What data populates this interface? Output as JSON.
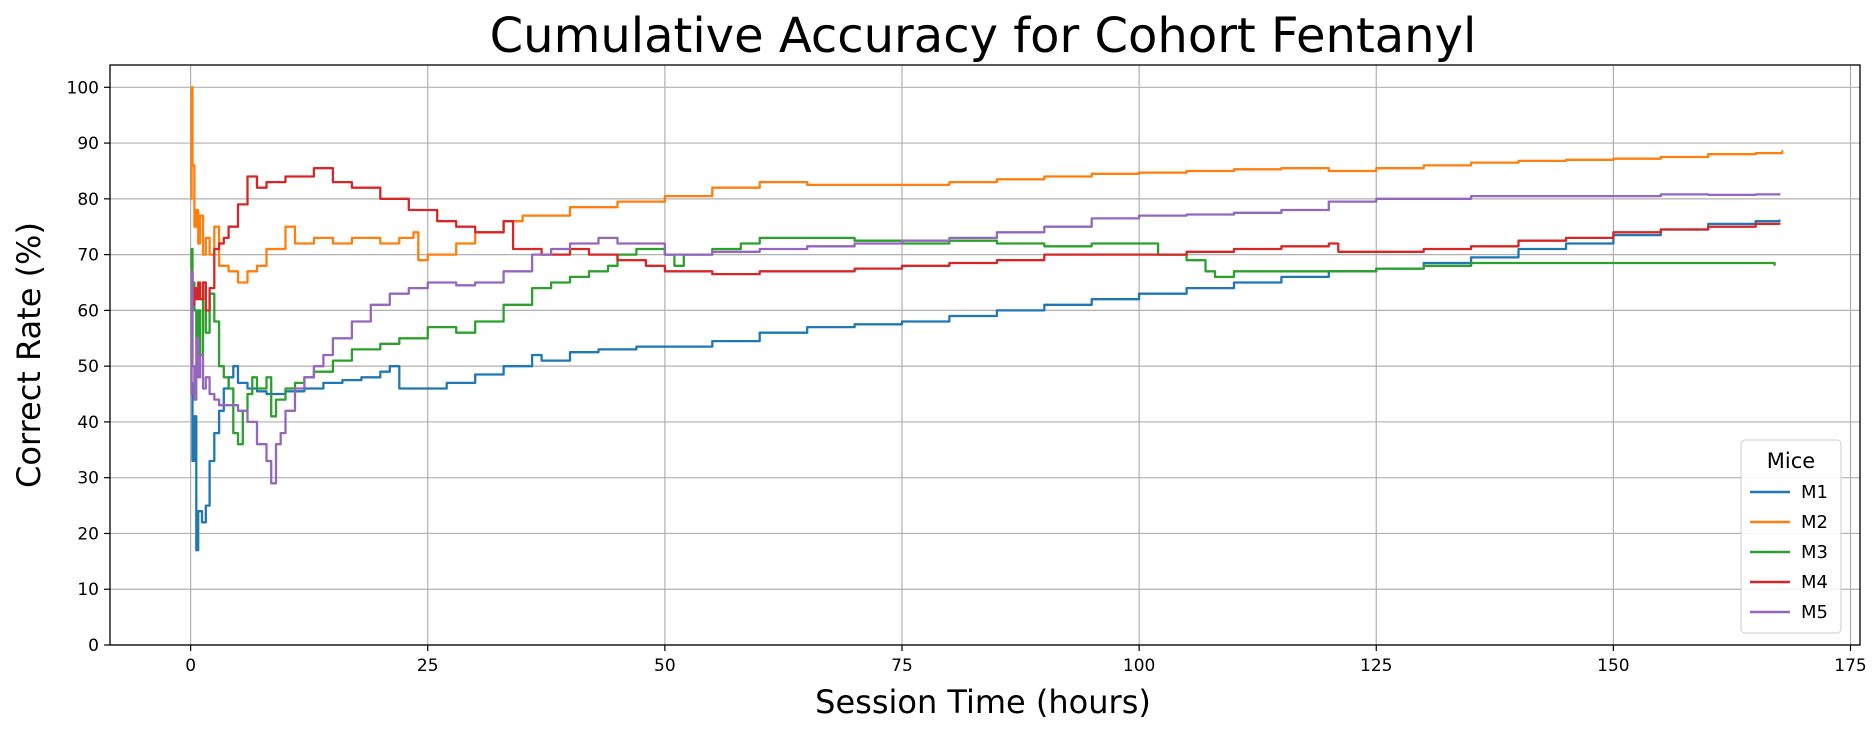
{
  "chart_data": {
    "type": "line",
    "title": "Cumulative Accuracy for Cohort Fentanyl",
    "xlabel": "Session Time (hours)",
    "ylabel": "Correct Rate (%)",
    "xlim": [
      -8.5,
      176
    ],
    "ylim": [
      0,
      104
    ],
    "xticks": [
      0,
      25,
      50,
      75,
      100,
      125,
      150,
      175
    ],
    "yticks": [
      0,
      10,
      20,
      30,
      40,
      50,
      60,
      70,
      80,
      90,
      100
    ],
    "grid": true,
    "legend": {
      "title": "Mice",
      "placement": "bottom-right"
    },
    "series": [
      {
        "name": "M1",
        "color": "#1f77b4",
        "points": [
          [
            0,
            47
          ],
          [
            0.2,
            33
          ],
          [
            0.4,
            41
          ],
          [
            0.6,
            17
          ],
          [
            0.8,
            24
          ],
          [
            1.2,
            22
          ],
          [
            1.6,
            25
          ],
          [
            2,
            33
          ],
          [
            2.5,
            38
          ],
          [
            3,
            42
          ],
          [
            3.5,
            46
          ],
          [
            4,
            48
          ],
          [
            4.5,
            50
          ],
          [
            5,
            47
          ],
          [
            6,
            46
          ],
          [
            7,
            45.5
          ],
          [
            8,
            45
          ],
          [
            9,
            45
          ],
          [
            10,
            45.5
          ],
          [
            12,
            46
          ],
          [
            14,
            47
          ],
          [
            16,
            47.5
          ],
          [
            18,
            48
          ],
          [
            20,
            49
          ],
          [
            21,
            50
          ],
          [
            22,
            46
          ],
          [
            25,
            46
          ],
          [
            27,
            47
          ],
          [
            30,
            48.5
          ],
          [
            33,
            50
          ],
          [
            36,
            52
          ],
          [
            37,
            51
          ],
          [
            40,
            52.5
          ],
          [
            43,
            53
          ],
          [
            47,
            53.5
          ],
          [
            50,
            53.5
          ],
          [
            55,
            54.5
          ],
          [
            60,
            56
          ],
          [
            65,
            57
          ],
          [
            70,
            57.5
          ],
          [
            75,
            58
          ],
          [
            80,
            59
          ],
          [
            85,
            60
          ],
          [
            90,
            61
          ],
          [
            95,
            62
          ],
          [
            100,
            63
          ],
          [
            105,
            64
          ],
          [
            110,
            65
          ],
          [
            115,
            66
          ],
          [
            120,
            67
          ],
          [
            125,
            67.5
          ],
          [
            130,
            68.5
          ],
          [
            135,
            69.5
          ],
          [
            140,
            71
          ],
          [
            145,
            72
          ],
          [
            150,
            73.5
          ],
          [
            155,
            74.5
          ],
          [
            160,
            75.5
          ],
          [
            165,
            76
          ],
          [
            167.5,
            76.3
          ]
        ]
      },
      {
        "name": "M2",
        "color": "#ff7f0e",
        "points": [
          [
            0,
            80
          ],
          [
            0.1,
            100
          ],
          [
            0.2,
            86
          ],
          [
            0.4,
            75
          ],
          [
            0.6,
            78
          ],
          [
            0.8,
            72
          ],
          [
            1,
            77
          ],
          [
            1.3,
            70
          ],
          [
            1.6,
            73
          ],
          [
            2,
            70
          ],
          [
            2.5,
            75
          ],
          [
            3,
            68
          ],
          [
            4,
            67
          ],
          [
            5,
            65
          ],
          [
            6,
            67
          ],
          [
            7,
            68
          ],
          [
            8,
            71
          ],
          [
            10,
            75
          ],
          [
            11,
            72
          ],
          [
            13,
            73
          ],
          [
            15,
            72
          ],
          [
            17,
            73
          ],
          [
            20,
            72
          ],
          [
            22,
            73
          ],
          [
            23.5,
            74
          ],
          [
            24,
            69
          ],
          [
            25,
            70
          ],
          [
            28,
            72
          ],
          [
            30,
            74
          ],
          [
            33,
            76
          ],
          [
            35,
            77
          ],
          [
            40,
            78.5
          ],
          [
            45,
            79.5
          ],
          [
            50,
            80.5
          ],
          [
            55,
            82
          ],
          [
            60,
            83
          ],
          [
            65,
            82.5
          ],
          [
            70,
            82.5
          ],
          [
            75,
            82.5
          ],
          [
            80,
            83
          ],
          [
            85,
            83.5
          ],
          [
            90,
            84
          ],
          [
            95,
            84.5
          ],
          [
            100,
            84.7
          ],
          [
            105,
            85
          ],
          [
            110,
            85.3
          ],
          [
            115,
            85.5
          ],
          [
            120,
            85
          ],
          [
            125,
            85.5
          ],
          [
            130,
            86
          ],
          [
            135,
            86.5
          ],
          [
            140,
            86.8
          ],
          [
            145,
            87
          ],
          [
            150,
            87.2
          ],
          [
            155,
            87.5
          ],
          [
            160,
            88
          ],
          [
            165,
            88.2
          ],
          [
            167.8,
            88.7
          ]
        ]
      },
      {
        "name": "M3",
        "color": "#2ca02c",
        "points": [
          [
            0,
            60
          ],
          [
            0.1,
            71
          ],
          [
            0.2,
            65
          ],
          [
            0.4,
            60
          ],
          [
            0.6,
            55
          ],
          [
            0.8,
            60
          ],
          [
            1,
            52
          ],
          [
            1.3,
            65
          ],
          [
            1.6,
            56
          ],
          [
            2,
            63
          ],
          [
            2.5,
            58
          ],
          [
            3,
            50
          ],
          [
            3.5,
            48
          ],
          [
            4,
            46
          ],
          [
            4.5,
            38
          ],
          [
            5,
            36
          ],
          [
            5.5,
            42
          ],
          [
            6,
            45
          ],
          [
            6.5,
            48
          ],
          [
            7,
            46
          ],
          [
            8,
            48
          ],
          [
            8.5,
            41
          ],
          [
            9,
            44
          ],
          [
            10,
            46
          ],
          [
            11,
            47
          ],
          [
            12,
            48
          ],
          [
            13,
            49
          ],
          [
            15,
            51
          ],
          [
            17,
            53
          ],
          [
            20,
            54
          ],
          [
            22,
            55
          ],
          [
            25,
            57
          ],
          [
            28,
            56
          ],
          [
            30,
            58
          ],
          [
            33,
            61
          ],
          [
            36,
            64
          ],
          [
            38,
            65
          ],
          [
            40,
            66
          ],
          [
            42,
            67
          ],
          [
            44,
            68
          ],
          [
            45,
            70
          ],
          [
            47,
            71
          ],
          [
            50,
            70
          ],
          [
            51,
            68
          ],
          [
            52,
            70
          ],
          [
            55,
            71
          ],
          [
            58,
            72
          ],
          [
            60,
            73
          ],
          [
            65,
            73
          ],
          [
            70,
            72.5
          ],
          [
            75,
            72
          ],
          [
            80,
            72.5
          ],
          [
            85,
            72
          ],
          [
            90,
            71.5
          ],
          [
            95,
            72
          ],
          [
            100,
            72
          ],
          [
            102,
            70
          ],
          [
            105,
            69
          ],
          [
            107,
            67
          ],
          [
            108,
            66
          ],
          [
            110,
            67
          ],
          [
            115,
            67
          ],
          [
            120,
            67
          ],
          [
            125,
            67.5
          ],
          [
            130,
            68
          ],
          [
            135,
            68.5
          ],
          [
            140,
            68.5
          ],
          [
            145,
            68.5
          ],
          [
            150,
            68.5
          ],
          [
            155,
            68.5
          ],
          [
            160,
            68.5
          ],
          [
            165,
            68.5
          ],
          [
            167,
            68
          ]
        ]
      },
      {
        "name": "M4",
        "color": "#d62728",
        "points": [
          [
            0,
            67
          ],
          [
            0.2,
            61
          ],
          [
            0.4,
            64
          ],
          [
            0.6,
            62
          ],
          [
            0.8,
            65
          ],
          [
            1,
            62
          ],
          [
            1.3,
            65
          ],
          [
            1.6,
            60
          ],
          [
            2,
            64
          ],
          [
            2.5,
            71
          ],
          [
            3,
            72
          ],
          [
            3.5,
            73
          ],
          [
            4,
            75
          ],
          [
            5,
            79
          ],
          [
            6,
            84
          ],
          [
            7,
            82
          ],
          [
            8,
            83
          ],
          [
            10,
            84
          ],
          [
            13,
            85.5
          ],
          [
            15,
            83
          ],
          [
            17,
            82
          ],
          [
            20,
            80
          ],
          [
            23,
            78
          ],
          [
            26,
            76
          ],
          [
            28,
            75
          ],
          [
            30,
            74
          ],
          [
            33,
            76
          ],
          [
            34,
            71
          ],
          [
            37,
            70
          ],
          [
            40,
            71
          ],
          [
            42,
            70
          ],
          [
            45,
            69
          ],
          [
            48,
            68
          ],
          [
            50,
            67
          ],
          [
            55,
            66.5
          ],
          [
            60,
            67
          ],
          [
            65,
            67
          ],
          [
            70,
            67.5
          ],
          [
            75,
            68
          ],
          [
            80,
            68.5
          ],
          [
            85,
            69
          ],
          [
            90,
            70
          ],
          [
            95,
            70
          ],
          [
            100,
            70
          ],
          [
            105,
            70.5
          ],
          [
            110,
            71
          ],
          [
            115,
            71.5
          ],
          [
            120,
            72
          ],
          [
            121,
            70.5
          ],
          [
            125,
            70.5
          ],
          [
            130,
            71
          ],
          [
            135,
            71.5
          ],
          [
            140,
            72.5
          ],
          [
            145,
            73
          ],
          [
            150,
            74
          ],
          [
            155,
            74.5
          ],
          [
            160,
            75
          ],
          [
            165,
            75.5
          ],
          [
            167.5,
            75.7
          ]
        ]
      },
      {
        "name": "M5",
        "color": "#9467bd",
        "points": [
          [
            0,
            45
          ],
          [
            0.1,
            67
          ],
          [
            0.2,
            50
          ],
          [
            0.4,
            44
          ],
          [
            0.6,
            55
          ],
          [
            0.8,
            48
          ],
          [
            1,
            52
          ],
          [
            1.3,
            46
          ],
          [
            1.6,
            48
          ],
          [
            2,
            45
          ],
          [
            2.5,
            44
          ],
          [
            3,
            43
          ],
          [
            4,
            43
          ],
          [
            5,
            42
          ],
          [
            6,
            40
          ],
          [
            7,
            36
          ],
          [
            8,
            33
          ],
          [
            8.5,
            29
          ],
          [
            9,
            36
          ],
          [
            9.5,
            38
          ],
          [
            10,
            42
          ],
          [
            11,
            46
          ],
          [
            12,
            48
          ],
          [
            13,
            50
          ],
          [
            14,
            52
          ],
          [
            15,
            55
          ],
          [
            17,
            58
          ],
          [
            19,
            61
          ],
          [
            21,
            63
          ],
          [
            23,
            64
          ],
          [
            25,
            65
          ],
          [
            28,
            64.5
          ],
          [
            30,
            65
          ],
          [
            33,
            67
          ],
          [
            36,
            70
          ],
          [
            38,
            71
          ],
          [
            40,
            72
          ],
          [
            43,
            73
          ],
          [
            45,
            72
          ],
          [
            48,
            72
          ],
          [
            50,
            70
          ],
          [
            55,
            70.5
          ],
          [
            60,
            71
          ],
          [
            65,
            71.5
          ],
          [
            70,
            72
          ],
          [
            75,
            72.5
          ],
          [
            80,
            73
          ],
          [
            85,
            74
          ],
          [
            90,
            75
          ],
          [
            95,
            76.5
          ],
          [
            100,
            77
          ],
          [
            105,
            77.2
          ],
          [
            110,
            77.5
          ],
          [
            115,
            78
          ],
          [
            120,
            79.5
          ],
          [
            125,
            80
          ],
          [
            130,
            80
          ],
          [
            135,
            80.5
          ],
          [
            140,
            80.5
          ],
          [
            145,
            80.5
          ],
          [
            150,
            80.5
          ],
          [
            155,
            80.8
          ],
          [
            160,
            80.7
          ],
          [
            165,
            80.8
          ],
          [
            167.5,
            81
          ]
        ]
      }
    ]
  }
}
